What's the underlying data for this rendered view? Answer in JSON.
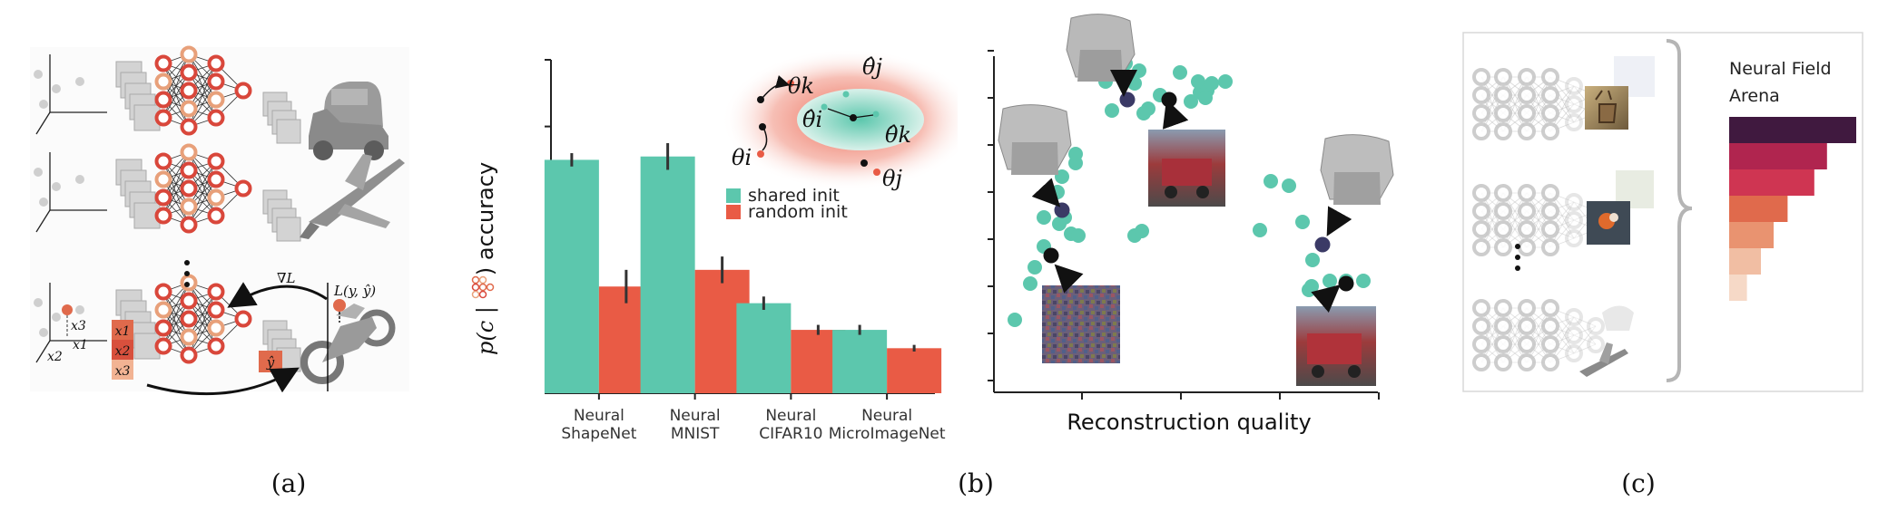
{
  "captions": {
    "a": "(a)",
    "b": "(b)",
    "c": "(c)"
  },
  "colors": {
    "teal": "#5cc7ad",
    "red": "#e95b45",
    "navy": "#3b3a66",
    "ring_red": "#d9473b",
    "ring_orange": "#e8a07a",
    "ring_gray": "#c8c8c8"
  },
  "panel_a": {
    "labels": {
      "x1_box": "x1",
      "x2_box": "x2",
      "x3_box": "x3",
      "y_hat_box": "ŷ",
      "x1_axis": "x1",
      "x2_axis": "x2",
      "x3_axis": "x3",
      "grad_loss": "∇L",
      "loss": "L(y, ŷ)"
    },
    "icons": [
      "car-icon",
      "airplane-icon",
      "motorcycle-icon"
    ]
  },
  "chart_data": {
    "type": "bar",
    "categories": [
      "Neural\nShapeNet",
      "Neural\nMNIST",
      "Neural\nCIFAR10",
      "Neural\nMicroImageNet"
    ],
    "series": [
      {
        "name": "shared init",
        "values": [
          0.7,
          0.71,
          0.27,
          0.19
        ],
        "errors": [
          0.02,
          0.04,
          0.02,
          0.015
        ],
        "color": "#5cc7ad"
      },
      {
        "name": "random init",
        "values": [
          0.32,
          0.37,
          0.19,
          0.135
        ],
        "errors": [
          0.05,
          0.04,
          0.015,
          0.01
        ],
        "color": "#e95b45"
      }
    ],
    "ylabel_parts": {
      "pre": "p(c |",
      "post": ") accuracy"
    },
    "ylim": [
      0,
      1
    ],
    "yticks": [
      0,
      0.2,
      0.4,
      0.6,
      0.8,
      1.0
    ],
    "legend_position": "top-right",
    "inset_labels": {
      "theta_k": "θk",
      "theta_i": "θi",
      "theta_hat_j": "θ̂j",
      "theta_hat_i": "θ̂i",
      "theta_hat_k": "θ̂k",
      "theta_j": "θj"
    }
  },
  "panel_b": {
    "xlabel": "Reconstruction quality",
    "yticks": [
      0,
      1,
      2,
      3,
      4,
      5,
      6,
      7
    ],
    "xticks": [
      0,
      1,
      2,
      3
    ],
    "thumbnails": [
      "chair-shape-icon",
      "chair-shape-icon",
      "chair-shape-icon",
      "red-truck-image",
      "noise-image",
      "red-truck-image"
    ]
  },
  "panel_c": {
    "title_line1": "Neural Field",
    "title_line2": "Arena",
    "rank_bars": [
      1.0,
      0.77,
      0.67,
      0.46,
      0.35,
      0.25,
      0.14
    ],
    "rank_colors": [
      "#40193f",
      "#b0254f",
      "#cf3552",
      "#e06a4c",
      "#e99370",
      "#f1bea3",
      "#f6d9c7"
    ],
    "icons": [
      "deer-image",
      "bird-image",
      "airplane-icon"
    ]
  }
}
